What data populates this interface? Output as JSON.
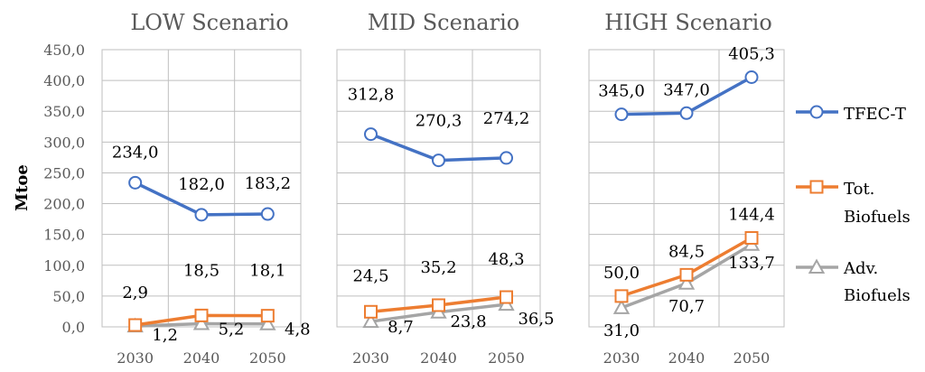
{
  "chart_data": {
    "type": "line",
    "ylabel": "Mtoe",
    "ylim": [
      0,
      450
    ],
    "yticks": [
      "0,0",
      "50,0",
      "100,0",
      "150,0",
      "200,0",
      "250,0",
      "300,0",
      "350,0",
      "400,0",
      "450,0"
    ],
    "grid": true,
    "legend_position": "right",
    "colors": {
      "tfec": "#4472C4",
      "tot": "#ED7D31",
      "adv": "#A5A5A5",
      "grid": "#BFBFBF",
      "text": "#000000",
      "axis_text": "#595959"
    },
    "legend": [
      {
        "key": "tfec",
        "lines": [
          "TFEC-T"
        ]
      },
      {
        "key": "tot",
        "lines": [
          "Tot.",
          "Biofuels"
        ]
      },
      {
        "key": "adv",
        "lines": [
          "Adv.",
          "Biofuels"
        ]
      }
    ],
    "panels": [
      {
        "title": "LOW Scenario",
        "categories": [
          "2030",
          "2040",
          "2050"
        ],
        "series": [
          {
            "key": "tfec",
            "values": [
              234.0,
              182.0,
              183.2
            ],
            "labels": [
              "234,0",
              "182,0",
              "183,2"
            ]
          },
          {
            "key": "tot",
            "values": [
              2.9,
              18.5,
              18.1
            ],
            "labels": [
              "2,9",
              "18,5",
              "18,1"
            ]
          },
          {
            "key": "adv",
            "values": [
              1.2,
              5.2,
              4.8
            ],
            "labels": [
              "1,2",
              "5,2",
              "4,8"
            ]
          }
        ]
      },
      {
        "title": "MID Scenario",
        "categories": [
          "2030",
          "2040",
          "2050"
        ],
        "series": [
          {
            "key": "tfec",
            "values": [
              312.8,
              270.3,
              274.2
            ],
            "labels": [
              "312,8",
              "270,3",
              "274,2"
            ]
          },
          {
            "key": "tot",
            "values": [
              24.5,
              35.2,
              48.3
            ],
            "labels": [
              "24,5",
              "35,2",
              "48,3"
            ]
          },
          {
            "key": "adv",
            "values": [
              8.7,
              23.8,
              36.5
            ],
            "labels": [
              "8,7",
              "23,8",
              "36,5"
            ]
          }
        ]
      },
      {
        "title": "HIGH Scenario",
        "categories": [
          "2030",
          "2040",
          "2050"
        ],
        "series": [
          {
            "key": "tfec",
            "values": [
              345.0,
              347.0,
              405.3
            ],
            "labels": [
              "345,0",
              "347,0",
              "405,3"
            ]
          },
          {
            "key": "tot",
            "values": [
              50.0,
              84.5,
              144.4
            ],
            "labels": [
              "50,0",
              "84,5",
              "144,4"
            ]
          },
          {
            "key": "adv",
            "values": [
              31.0,
              70.7,
              133.7
            ],
            "labels": [
              "31,0",
              "70,7",
              "133,7"
            ]
          }
        ]
      }
    ]
  }
}
